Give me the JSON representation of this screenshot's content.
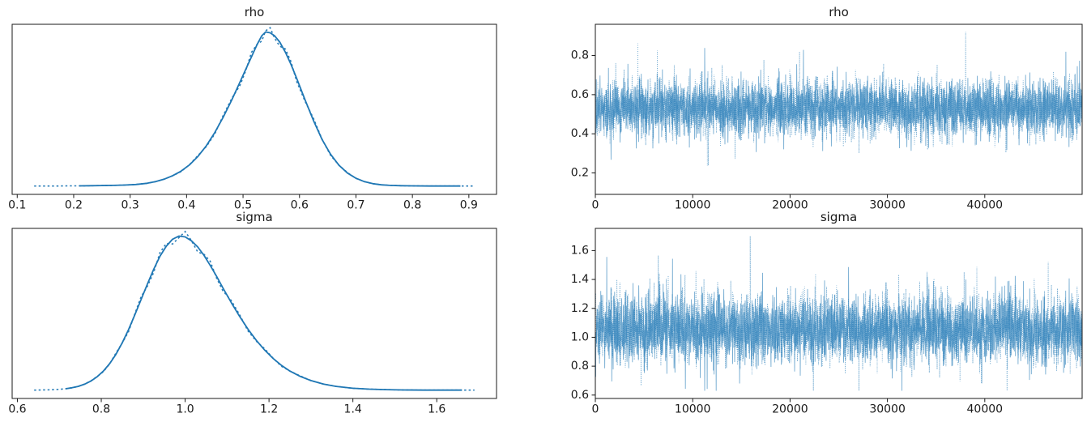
{
  "figure": {
    "background": "#ffffff",
    "line_color": "#1f77b4",
    "axis_color": "#1a1a1a",
    "n_chains": 2,
    "chain_styles": [
      "solid",
      "dotted"
    ]
  },
  "chart_data": [
    {
      "id": "rho-kde",
      "type": "line",
      "kind": "kde",
      "title": "rho",
      "xlabel": "",
      "ylabel": "",
      "xlim": [
        0.091,
        0.949
      ],
      "xtick_values": [
        0.1,
        0.2,
        0.3,
        0.4,
        0.5,
        0.6,
        0.7,
        0.8,
        0.9
      ],
      "xtick_labels": [
        "0.1",
        "0.2",
        "0.3",
        "0.4",
        "0.5",
        "0.6",
        "0.7",
        "0.8",
        "0.9"
      ],
      "data_range": [
        0.13,
        0.91
      ],
      "peak_x": 0.535,
      "grid": false,
      "legend": "none",
      "points": {
        "x": [
          0.13,
          0.15,
          0.17,
          0.19,
          0.21,
          0.23,
          0.25,
          0.27,
          0.29,
          0.31,
          0.33,
          0.345,
          0.36,
          0.375,
          0.39,
          0.405,
          0.42,
          0.435,
          0.45,
          0.465,
          0.48,
          0.495,
          0.505,
          0.515,
          0.525,
          0.533,
          0.54,
          0.548,
          0.556,
          0.565,
          0.575,
          0.585,
          0.595,
          0.61,
          0.625,
          0.64,
          0.655,
          0.67,
          0.685,
          0.7,
          0.715,
          0.73,
          0.745,
          0.76,
          0.78,
          0.8,
          0.83,
          0.86,
          0.885,
          0.91
        ],
        "density_rel": [
          0.004,
          0.004,
          0.004,
          0.005,
          0.005,
          0.006,
          0.007,
          0.008,
          0.01,
          0.014,
          0.022,
          0.032,
          0.048,
          0.07,
          0.1,
          0.14,
          0.195,
          0.265,
          0.35,
          0.45,
          0.56,
          0.68,
          0.76,
          0.84,
          0.92,
          0.975,
          1.0,
          0.995,
          0.975,
          0.935,
          0.87,
          0.79,
          0.7,
          0.56,
          0.425,
          0.305,
          0.21,
          0.138,
          0.088,
          0.054,
          0.032,
          0.019,
          0.012,
          0.008,
          0.006,
          0.005,
          0.004,
          0.004,
          0.004,
          0.004
        ]
      }
    },
    {
      "id": "rho-trace",
      "type": "line",
      "kind": "trace",
      "title": "rho",
      "xlabel": "",
      "ylabel": "",
      "xlim": [
        0,
        50000
      ],
      "ylim": [
        0.0905,
        0.9595
      ],
      "xtick_values": [
        0,
        10000,
        20000,
        30000,
        40000
      ],
      "xtick_labels": [
        "0",
        "10000",
        "20000",
        "30000",
        "40000"
      ],
      "ytick_values": [
        0.2,
        0.4,
        0.6,
        0.8
      ],
      "ytick_labels": [
        "0.2",
        "0.4",
        "0.6",
        "0.8"
      ],
      "n_samples": 50000,
      "grid": false,
      "legend": "none",
      "summary": {
        "mean": 0.53,
        "sd": 0.072,
        "min": 0.13,
        "max": 0.92,
        "dense_band": [
          0.33,
          0.73
        ],
        "skew": 0
      }
    },
    {
      "id": "sigma-kde",
      "type": "line",
      "kind": "kde",
      "title": "sigma",
      "xlabel": "",
      "ylabel": "",
      "xlim": [
        0.5875,
        1.7425
      ],
      "xtick_values": [
        0.6,
        0.8,
        1.0,
        1.2,
        1.4,
        1.6
      ],
      "xtick_labels": [
        "0.6",
        "0.8",
        "1.0",
        "1.2",
        "1.4",
        "1.6"
      ],
      "data_range": [
        0.64,
        1.69
      ],
      "peak_x": 0.985,
      "grid": false,
      "legend": "none",
      "points": {
        "x": [
          0.64,
          0.66,
          0.68,
          0.7,
          0.715,
          0.73,
          0.745,
          0.76,
          0.775,
          0.79,
          0.805,
          0.82,
          0.835,
          0.85,
          0.865,
          0.88,
          0.895,
          0.91,
          0.925,
          0.94,
          0.955,
          0.97,
          0.985,
          1.0,
          1.015,
          1.03,
          1.045,
          1.06,
          1.075,
          1.09,
          1.11,
          1.13,
          1.15,
          1.17,
          1.19,
          1.21,
          1.23,
          1.25,
          1.275,
          1.3,
          1.33,
          1.36,
          1.4,
          1.44,
          1.48,
          1.52,
          1.57,
          1.62,
          1.66,
          1.69
        ],
        "density_rel": [
          0.004,
          0.005,
          0.006,
          0.009,
          0.013,
          0.019,
          0.028,
          0.042,
          0.062,
          0.09,
          0.127,
          0.175,
          0.235,
          0.31,
          0.395,
          0.49,
          0.59,
          0.69,
          0.785,
          0.87,
          0.935,
          0.98,
          1.0,
          0.995,
          0.97,
          0.93,
          0.875,
          0.81,
          0.74,
          0.665,
          0.57,
          0.48,
          0.398,
          0.325,
          0.262,
          0.208,
          0.163,
          0.127,
          0.092,
          0.066,
          0.043,
          0.028,
          0.016,
          0.01,
          0.007,
          0.005,
          0.004,
          0.004,
          0.004,
          0.004
        ]
      }
    },
    {
      "id": "sigma-trace",
      "type": "line",
      "kind": "trace",
      "title": "sigma",
      "xlabel": "",
      "ylabel": "",
      "xlim": [
        0,
        50000
      ],
      "ylim": [
        0.5765,
        1.7535
      ],
      "xtick_values": [
        0,
        10000,
        20000,
        30000,
        40000
      ],
      "xtick_labels": [
        "0",
        "10000",
        "20000",
        "30000",
        "40000"
      ],
      "ytick_values": [
        0.6,
        0.8,
        1.0,
        1.2,
        1.4,
        1.6
      ],
      "ytick_labels": [
        "0.6",
        "0.8",
        "1.0",
        "1.2",
        "1.4",
        "1.6"
      ],
      "n_samples": 50000,
      "grid": false,
      "legend": "none",
      "summary": {
        "mean": 1.045,
        "sd": 0.112,
        "min": 0.63,
        "max": 1.7,
        "dense_band": [
          0.78,
          1.4
        ],
        "skew": 0.12
      }
    }
  ]
}
